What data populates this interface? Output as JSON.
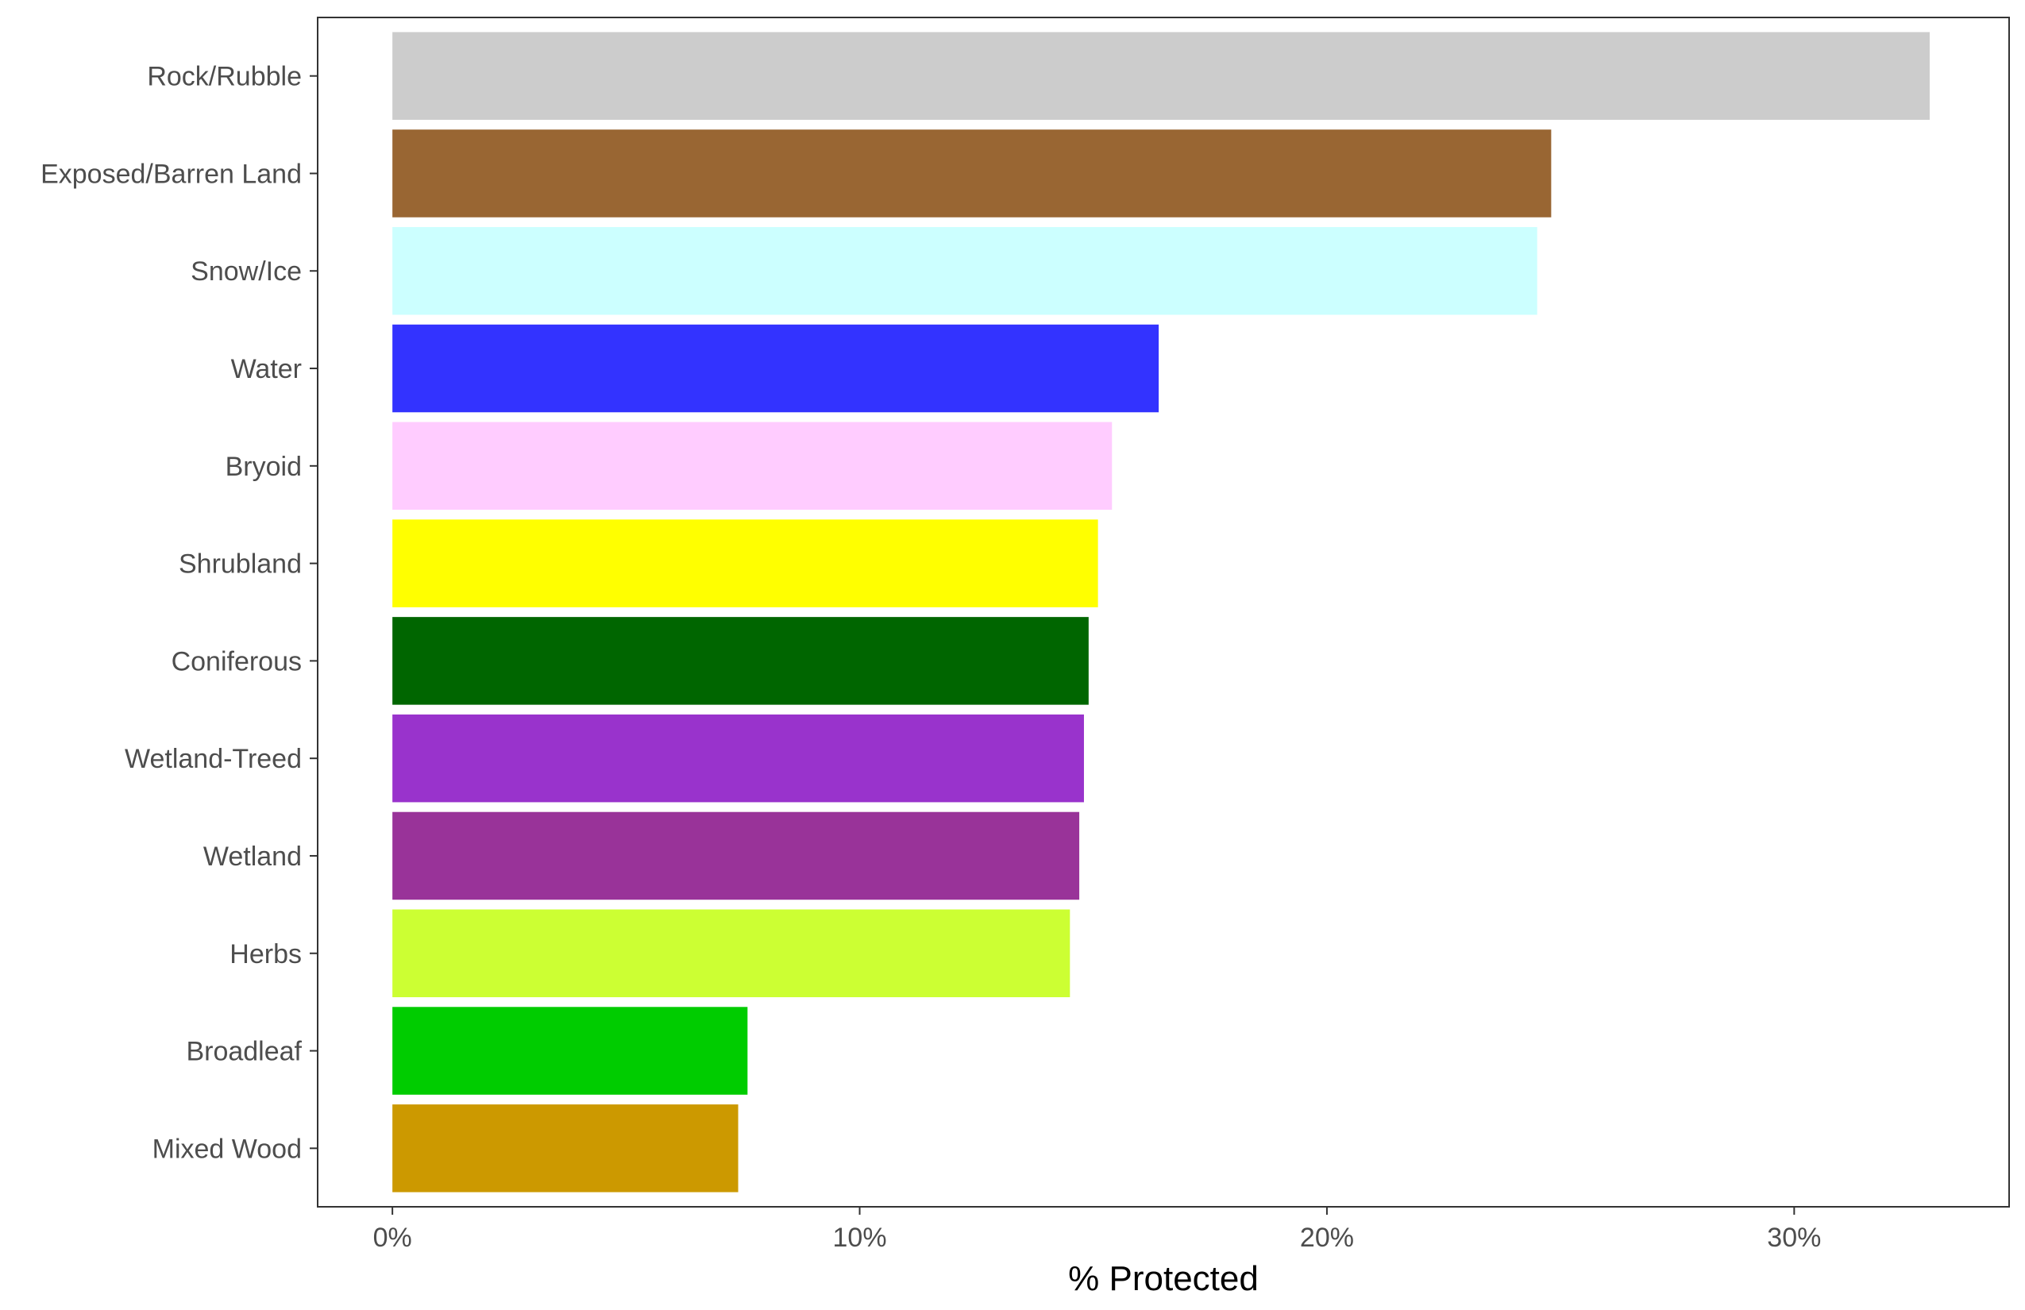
{
  "chart_data": {
    "type": "bar",
    "orientation": "horizontal",
    "xlabel": "% Protected",
    "ylabel": "",
    "xlim": [
      -1.6,
      34.6
    ],
    "xticks": [
      0,
      10,
      20,
      30
    ],
    "xtick_labels": [
      "0%",
      "10%",
      "20%",
      "30%"
    ],
    "grid": false,
    "categories": [
      "Rock/Rubble",
      "Exposed/Barren Land",
      "Snow/Ice",
      "Water",
      "Bryoid",
      "Shrubland",
      "Coniferous",
      "Wetland-Treed",
      "Wetland",
      "Herbs",
      "Broadleaf",
      "Mixed Wood"
    ],
    "values": [
      32.9,
      24.8,
      24.5,
      16.4,
      15.4,
      15.1,
      14.9,
      14.8,
      14.7,
      14.5,
      7.6,
      7.4
    ],
    "colors": [
      "#cccccc",
      "#996633",
      "#ccffff",
      "#3333ff",
      "#ffccff",
      "#ffff00",
      "#006600",
      "#9933cc",
      "#993399",
      "#ccff33",
      "#00cc00",
      "#cc9900"
    ]
  }
}
